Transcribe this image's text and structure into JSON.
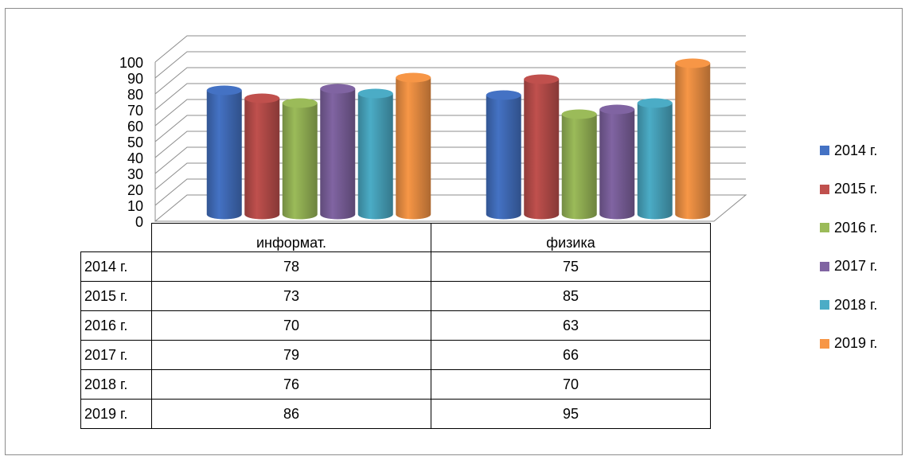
{
  "chart_data": {
    "type": "bar",
    "categories": [
      "информат.",
      "физика"
    ],
    "series": [
      {
        "name": "2014 г.",
        "values": [
          78,
          75
        ],
        "color": "#4472C4"
      },
      {
        "name": "2015 г.",
        "values": [
          73,
          85
        ],
        "color": "#C0504D"
      },
      {
        "name": "2016 г.",
        "values": [
          70,
          63
        ],
        "color": "#9BBB59"
      },
      {
        "name": "2017 г.",
        "values": [
          79,
          66
        ],
        "color": "#8064A2"
      },
      {
        "name": "2018 г.",
        "values": [
          76,
          70
        ],
        "color": "#4BACC6"
      },
      {
        "name": "2019 г.",
        "values": [
          86,
          95
        ],
        "color": "#F79646"
      }
    ],
    "y_ticks": [
      "0",
      "10",
      "20",
      "30",
      "40",
      "50",
      "60",
      "70",
      "80",
      "90",
      "100"
    ],
    "ylim": [
      0,
      100
    ],
    "grid": true,
    "legend_position": "right",
    "data_table": true
  }
}
